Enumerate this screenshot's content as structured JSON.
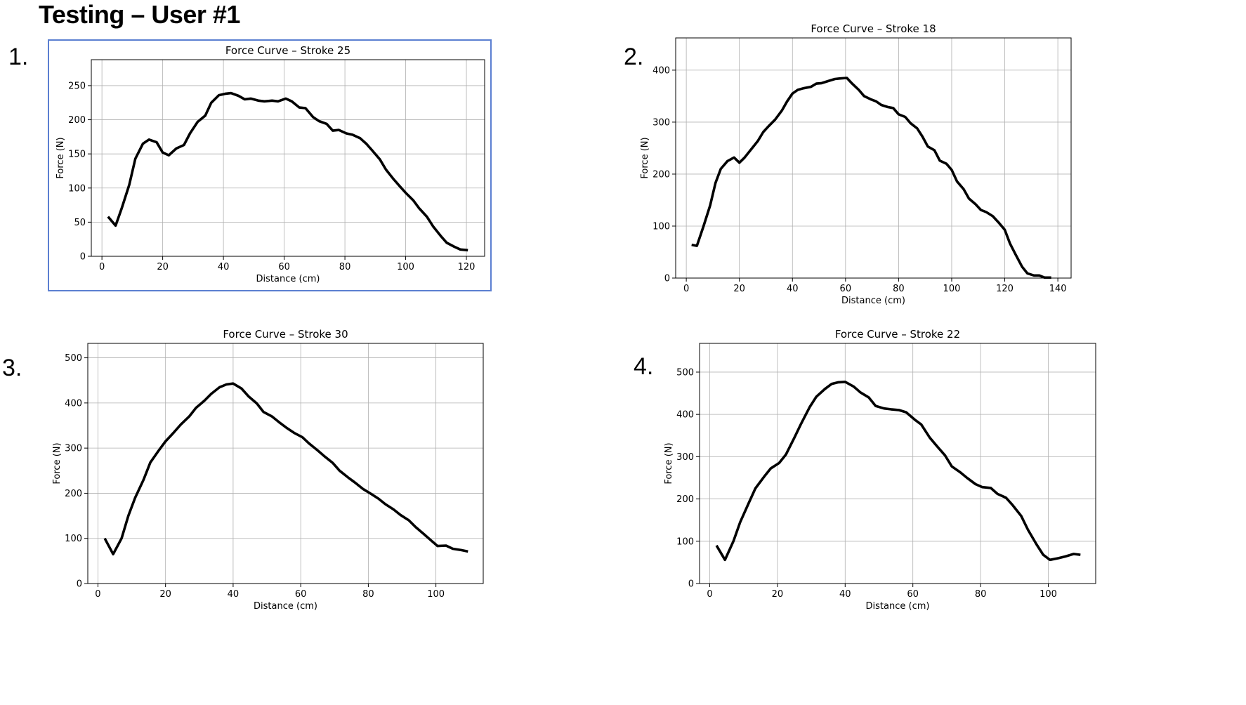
{
  "page": {
    "title": "Testing – User #1"
  },
  "panels": [
    {
      "number": "1.",
      "highlighted": true
    },
    {
      "number": "2.",
      "highlighted": false
    },
    {
      "number": "3.",
      "highlighted": false
    },
    {
      "number": "4.",
      "highlighted": false
    }
  ],
  "chart_data": [
    {
      "type": "line",
      "title": "Force Curve – Stroke 25",
      "xlabel": "Distance (cm)",
      "ylabel": "Force (N)",
      "xlim": [
        -3.5,
        126
      ],
      "ylim": [
        0,
        288
      ],
      "xticks": [
        0,
        20,
        40,
        60,
        80,
        100,
        120
      ],
      "yticks": [
        0,
        50,
        100,
        150,
        200,
        250
      ],
      "grid": true,
      "line_color": "#000000",
      "x": [
        2,
        4.5,
        6.5,
        9,
        11,
        13.5,
        15.5,
        18,
        20,
        22,
        24.5,
        27,
        29,
        31.5,
        34,
        36,
        38.5,
        40.5,
        42.5,
        45,
        47,
        49,
        51.5,
        53.5,
        56,
        58,
        60.5,
        62.5,
        65,
        67,
        69.5,
        71.5,
        74,
        76,
        78,
        80.5,
        82.5,
        85,
        87,
        89,
        91.5,
        93.5,
        96,
        98,
        100,
        102.5,
        104.5,
        107,
        109,
        111.5,
        113.5,
        116,
        118,
        120.5
      ],
      "y": [
        58,
        45,
        70,
        105,
        143,
        165,
        171,
        167,
        152,
        148,
        158,
        163,
        180,
        197,
        206,
        225,
        236,
        238,
        239,
        235,
        230,
        231,
        228,
        227,
        228,
        227,
        231,
        227,
        218,
        217,
        204,
        198,
        194,
        184,
        185,
        180,
        178,
        173,
        165,
        155,
        142,
        127,
        113,
        103,
        93,
        82,
        70,
        58,
        44,
        30,
        20,
        14,
        10,
        9
      ]
    },
    {
      "type": "line",
      "title": "Force Curve – Stroke 18",
      "xlabel": "Distance (cm)",
      "ylabel": "Force (N)",
      "xlim": [
        -4,
        145
      ],
      "ylim": [
        0,
        462
      ],
      "xticks": [
        0,
        20,
        40,
        60,
        80,
        100,
        120,
        140
      ],
      "yticks": [
        0,
        100,
        200,
        300,
        400
      ],
      "grid": true,
      "line_color": "#000000",
      "x": [
        2,
        4,
        6.5,
        9,
        11,
        13,
        15.5,
        18,
        20,
        22,
        24.5,
        27,
        29,
        31,
        33.5,
        36,
        38,
        40,
        42,
        44,
        47,
        49,
        51,
        53.5,
        56,
        58,
        60.5,
        62.5,
        65,
        67,
        69.5,
        71.5,
        73.5,
        76,
        78,
        80,
        82.5,
        84.5,
        87,
        89,
        91,
        93.5,
        95.5,
        98,
        100,
        102,
        104.5,
        106.5,
        109,
        111,
        113,
        115.5,
        117.5,
        120,
        122,
        124,
        126.5,
        128.5,
        131,
        133,
        135,
        137.5
      ],
      "y": [
        64,
        62,
        100,
        140,
        183,
        210,
        225,
        232,
        222,
        232,
        248,
        264,
        281,
        292,
        305,
        322,
        340,
        355,
        362,
        365,
        368,
        374,
        375,
        379,
        383,
        384,
        385,
        374,
        362,
        350,
        344,
        340,
        333,
        329,
        327,
        315,
        310,
        298,
        288,
        272,
        253,
        246,
        226,
        220,
        208,
        186,
        171,
        153,
        142,
        131,
        127,
        119,
        108,
        93,
        66,
        46,
        22,
        9,
        5,
        5,
        1,
        1
      ]
    },
    {
      "type": "line",
      "title": "Force Curve – Stroke 30",
      "xlabel": "Distance (cm)",
      "ylabel": "Force (N)",
      "xlim": [
        -3,
        114
      ],
      "ylim": [
        0,
        532
      ],
      "xticks": [
        0,
        20,
        40,
        60,
        80,
        100
      ],
      "yticks": [
        0,
        100,
        200,
        300,
        400,
        500
      ],
      "grid": true,
      "line_color": "#000000",
      "x": [
        2,
        4.5,
        7,
        9,
        11,
        13.5,
        15.5,
        18,
        20,
        22.5,
        24.5,
        27,
        29,
        31.5,
        33.5,
        36,
        38,
        40,
        42.5,
        44.5,
        47,
        49,
        51.5,
        53.5,
        56,
        58,
        60.5,
        62.5,
        65,
        67,
        69.5,
        71.5,
        74,
        76,
        78.5,
        80.5,
        83,
        85,
        87.5,
        89.5,
        92,
        94,
        96.5,
        98.5,
        100.5,
        103,
        105,
        107.5,
        109.5
      ],
      "y": [
        100,
        65,
        100,
        150,
        190,
        230,
        268,
        295,
        315,
        335,
        352,
        370,
        389,
        405,
        420,
        435,
        441,
        443,
        432,
        415,
        399,
        380,
        370,
        358,
        344,
        334,
        324,
        310,
        295,
        282,
        267,
        250,
        235,
        224,
        209,
        200,
        188,
        176,
        164,
        152,
        140,
        125,
        109,
        96,
        83,
        84,
        77,
        74,
        71
      ]
    },
    {
      "type": "line",
      "title": "Force Curve – Stroke 22",
      "xlabel": "Distance (cm)",
      "ylabel": "Force (N)",
      "xlim": [
        -3,
        114
      ],
      "ylim": [
        0,
        568
      ],
      "xticks": [
        0,
        20,
        40,
        60,
        80,
        100
      ],
      "yticks": [
        0,
        100,
        200,
        300,
        400,
        500
      ],
      "grid": true,
      "line_color": "#000000",
      "x": [
        2,
        4.5,
        7,
        9,
        11.5,
        13.5,
        16,
        18,
        20.5,
        22.5,
        25,
        27,
        29.5,
        31.5,
        34,
        36,
        38,
        40,
        42.5,
        44.5,
        47,
        49,
        51.5,
        53.5,
        56,
        58,
        60.5,
        62.5,
        65,
        67,
        69.5,
        71.5,
        74,
        76,
        78.5,
        80.5,
        83,
        85,
        87.5,
        89.5,
        92,
        94,
        96.5,
        98.5,
        100.5,
        103,
        105,
        107.5,
        109.5
      ],
      "y": [
        90,
        56,
        100,
        145,
        190,
        225,
        252,
        272,
        285,
        305,
        345,
        378,
        417,
        442,
        460,
        472,
        476,
        477,
        466,
        452,
        440,
        420,
        414,
        412,
        410,
        405,
        388,
        376,
        345,
        326,
        303,
        277,
        263,
        250,
        235,
        228,
        226,
        212,
        203,
        185,
        160,
        127,
        93,
        68,
        56,
        60,
        64,
        70,
        68
      ]
    }
  ]
}
